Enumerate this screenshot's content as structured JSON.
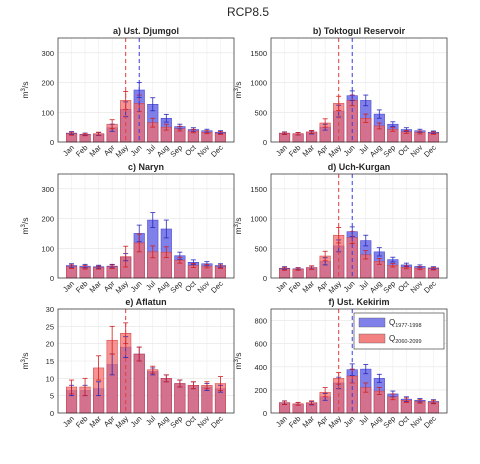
{
  "figure": {
    "title": "RCP8.5"
  },
  "legend": {
    "baseline": {
      "base": "Q",
      "sub": "1977-1998",
      "color": "#6a6ae6"
    },
    "future": {
      "base": "Q",
      "sub": "2060-2099",
      "color": "#f26b6b"
    }
  },
  "chart_data": [
    {
      "type": "bar",
      "title": "a) Ust. Djumgol",
      "ylabel": "m3/s",
      "ylim": [
        0,
        350
      ],
      "yticks": [
        0,
        100,
        200,
        300
      ],
      "categories": [
        "Jan",
        "Feb",
        "Mar",
        "Apr",
        "May",
        "Jun",
        "Jul",
        "Aug",
        "Sep",
        "Oct",
        "Nov",
        "Dec"
      ],
      "series": [
        {
          "name": "Q1977-1998",
          "values": [
            30,
            26,
            27,
            48,
            110,
            175,
            127,
            80,
            52,
            42,
            38,
            33
          ],
          "errors": [
            5,
            4,
            5,
            12,
            25,
            25,
            22,
            13,
            8,
            6,
            5,
            5
          ]
        },
        {
          "name": "Q2060-2099",
          "values": [
            28,
            25,
            28,
            60,
            140,
            130,
            65,
            50,
            45,
            37,
            33,
            30
          ],
          "errors": [
            5,
            4,
            5,
            15,
            30,
            28,
            15,
            10,
            8,
            6,
            5,
            5
          ]
        }
      ],
      "vlines": {
        "baseline": "Jun",
        "future": "May"
      }
    },
    {
      "type": "bar",
      "title": "b) Toktogul Reservoir",
      "ylabel": "m3/s",
      "ylim": [
        0,
        1750
      ],
      "yticks": [
        0,
        500,
        1000,
        1500
      ],
      "categories": [
        "Jan",
        "Feb",
        "Mar",
        "Apr",
        "May",
        "Jun",
        "Jul",
        "Aug",
        "Sep",
        "Oct",
        "Nov",
        "Dec"
      ],
      "series": [
        {
          "name": "Q1977-1998",
          "values": [
            150,
            140,
            160,
            250,
            520,
            780,
            700,
            470,
            300,
            210,
            190,
            165
          ],
          "errors": [
            20,
            20,
            25,
            50,
            100,
            80,
            90,
            70,
            40,
            30,
            25,
            20
          ]
        },
        {
          "name": "Q2060-2099",
          "values": [
            145,
            140,
            170,
            320,
            650,
            700,
            400,
            270,
            210,
            170,
            160,
            150
          ],
          "errors": [
            20,
            20,
            25,
            70,
            120,
            90,
            70,
            50,
            30,
            25,
            25,
            20
          ]
        }
      ],
      "vlines": {
        "baseline": "Jun",
        "future": "May"
      }
    },
    {
      "type": "bar",
      "title": "c) Naryn",
      "ylabel": "m3/s",
      "ylim": [
        0,
        350
      ],
      "yticks": [
        0,
        100,
        200,
        300
      ],
      "categories": [
        "Jan",
        "Feb",
        "Mar",
        "Apr",
        "May",
        "Jun",
        "Jul",
        "Aug",
        "Sep",
        "Oct",
        "Nov",
        "Dec"
      ],
      "series": [
        {
          "name": "Q1977-1998",
          "values": [
            42,
            40,
            38,
            40,
            70,
            150,
            195,
            165,
            75,
            53,
            48,
            42
          ],
          "errors": [
            6,
            6,
            5,
            6,
            12,
            28,
            25,
            30,
            12,
            8,
            7,
            6
          ]
        },
        {
          "name": "Q2060-2099",
          "values": [
            38,
            36,
            35,
            38,
            72,
            118,
            88,
            87,
            60,
            42,
            40,
            38
          ],
          "errors": [
            6,
            6,
            5,
            6,
            35,
            30,
            20,
            18,
            10,
            7,
            6,
            6
          ]
        }
      ],
      "vlines": {}
    },
    {
      "type": "bar",
      "title": "d) Uch-Kurgan",
      "ylabel": "m3/s",
      "ylim": [
        0,
        1750
      ],
      "yticks": [
        0,
        500,
        1000,
        1500
      ],
      "categories": [
        "Jan",
        "Feb",
        "Mar",
        "Apr",
        "May",
        "Jun",
        "Jul",
        "Aug",
        "Sep",
        "Oct",
        "Nov",
        "Dec"
      ],
      "series": [
        {
          "name": "Q1977-1998",
          "values": [
            165,
            155,
            175,
            280,
            540,
            780,
            630,
            440,
            310,
            220,
            195,
            170
          ],
          "errors": [
            25,
            20,
            25,
            60,
            100,
            80,
            90,
            70,
            40,
            30,
            25,
            20
          ]
        },
        {
          "name": "Q2060-2099",
          "values": [
            155,
            150,
            175,
            370,
            720,
            680,
            390,
            280,
            215,
            180,
            165,
            155
          ],
          "errors": [
            25,
            20,
            30,
            80,
            130,
            100,
            70,
            50,
            30,
            25,
            25,
            20
          ]
        }
      ],
      "vlines": {
        "baseline": "Jun",
        "future": "May"
      }
    },
    {
      "type": "bar",
      "title": "e) Aflatun",
      "ylabel": "m3/s",
      "ylim": [
        0,
        30
      ],
      "yticks": [
        0,
        5,
        10,
        15,
        20,
        25,
        30
      ],
      "categories": [
        "Jan",
        "Feb",
        "Mar",
        "Apr",
        "May",
        "Jun",
        "Jul",
        "Aug",
        "Sep",
        "Oct",
        "Nov",
        "Dec"
      ],
      "series": [
        {
          "name": "Q1977-1998",
          "values": [
            6.5,
            6.5,
            7,
            14,
            19,
            17,
            12,
            10,
            8.5,
            8,
            7.5,
            7
          ],
          "errors": [
            1.5,
            1.5,
            2,
            3,
            3,
            2,
            1,
            1,
            1,
            1,
            1,
            1
          ]
        },
        {
          "name": "Q2060-2099",
          "values": [
            7.5,
            7.5,
            13,
            21,
            23,
            17,
            12.5,
            10,
            8.5,
            8,
            8,
            8.5
          ],
          "errors": [
            2,
            2.5,
            3.5,
            4,
            3,
            2,
            1,
            1,
            1,
            1,
            1,
            2
          ]
        }
      ],
      "vlines": {
        "future": "May"
      }
    },
    {
      "type": "bar",
      "title": "f) Ust. Kekirim",
      "ylabel": "m3/s",
      "ylim": [
        0,
        900
      ],
      "yticks": [
        0,
        200,
        400,
        600,
        800
      ],
      "categories": [
        "Jan",
        "Feb",
        "Mar",
        "Apr",
        "May",
        "Jun",
        "Jul",
        "Aug",
        "Sep",
        "Oct",
        "Nov",
        "Dec"
      ],
      "series": [
        {
          "name": "Q1977-1998",
          "values": [
            90,
            80,
            85,
            140,
            260,
            375,
            380,
            300,
            165,
            120,
            110,
            100
          ],
          "errors": [
            15,
            12,
            15,
            30,
            50,
            50,
            40,
            35,
            25,
            20,
            15,
            15
          ]
        },
        {
          "name": "Q2060-2099",
          "values": [
            88,
            80,
            90,
            180,
            300,
            320,
            220,
            190,
            140,
            110,
            100,
            95
          ],
          "errors": [
            15,
            12,
            15,
            40,
            50,
            60,
            40,
            30,
            25,
            20,
            15,
            15
          ]
        }
      ],
      "vlines": {
        "baseline": "Jun",
        "future": "May"
      }
    }
  ]
}
